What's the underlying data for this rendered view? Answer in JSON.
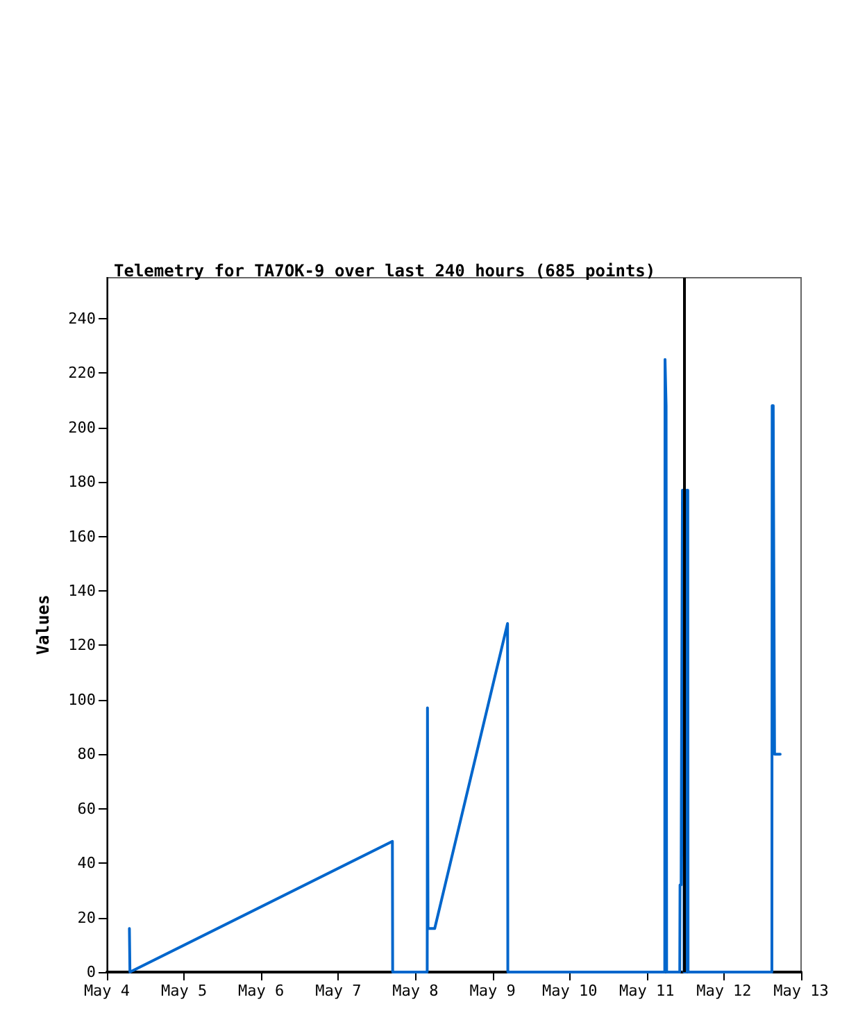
{
  "chart_data": {
    "type": "line",
    "title": "Telemetry for TA7OK-9 over last 240 hours (685 points)",
    "ylabel": "Values",
    "xlim": [
      "--05-04",
      "--05-13"
    ],
    "xticks": [
      {
        "value": "--05-04",
        "label": "May 4"
      },
      {
        "value": "--05-05",
        "label": "May 5"
      },
      {
        "value": "--05-06",
        "label": "May 6"
      },
      {
        "value": "--05-07",
        "label": "May 7"
      },
      {
        "value": "--05-08",
        "label": "May 8"
      },
      {
        "value": "--05-09",
        "label": "May 9"
      },
      {
        "value": "--05-10",
        "label": "May 10"
      },
      {
        "value": "--05-11",
        "label": "May 11"
      },
      {
        "value": "--05-12",
        "label": "May 12"
      },
      {
        "value": "--05-13",
        "label": "May 13"
      }
    ],
    "ylim": [
      0,
      255
    ],
    "yticks": [
      0,
      20,
      40,
      60,
      80,
      100,
      120,
      140,
      160,
      180,
      200,
      220,
      240
    ],
    "series": [
      {
        "color": "#0066cc",
        "x": [
          "--05-04T07:00",
          "--05-04T07:10",
          "--05-07T16:50",
          "--05-07T16:55",
          "--05-08T03:40",
          "--05-08T03:45",
          "--05-08T03:55",
          "--05-08T06:00",
          "--05-09T04:40",
          "--05-09T04:45",
          "--05-11T05:35",
          "--05-11T05:40",
          "--05-11T06:00",
          "--05-11T06:10",
          "--05-11T10:15",
          "--05-11T10:20",
          "--05-11T10:40",
          "--05-11T10:45",
          "--05-11T11:00",
          "--05-11T11:05",
          "--05-11T11:30",
          "--05-11T11:35",
          "--05-11T12:20",
          "--05-11T12:25",
          "--05-11T12:45",
          "--05-11T12:50",
          "--05-12T14:55",
          "--05-12T15:00",
          "--05-12T15:20",
          "--05-12T15:25",
          "--05-12T15:40",
          "--05-12T15:45",
          "--05-12T17:30"
        ],
        "values": [
          16,
          0,
          48,
          0,
          0,
          97,
          16,
          16,
          128,
          0,
          0,
          225,
          208,
          0,
          0,
          32,
          32,
          65,
          65,
          177,
          177,
          0,
          0,
          177,
          177,
          0,
          0,
          208,
          208,
          177,
          177,
          80,
          80
        ]
      }
    ],
    "ref_lines": [
      {
        "axis": "x",
        "value": "--05-11T11:45",
        "color": "#000000"
      }
    ],
    "grid": false,
    "marker": "none",
    "line_style": "solid"
  }
}
